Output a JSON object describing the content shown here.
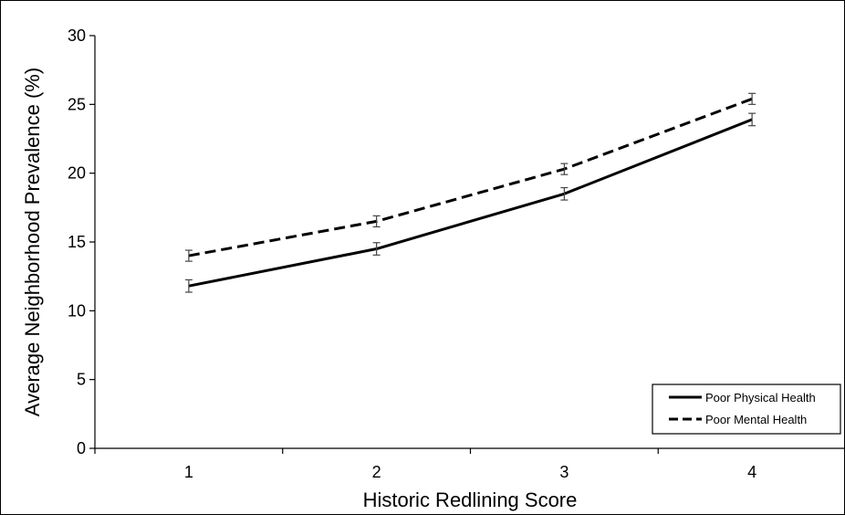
{
  "chart_data": {
    "type": "line",
    "xlabel": "Historic Redlining Score",
    "ylabel": "Average Neighborhood Prevalence (%)",
    "x": [
      1,
      2,
      3,
      4
    ],
    "xlim": [
      0.5,
      4.5
    ],
    "ylim": [
      0,
      30
    ],
    "y_ticks": [
      0,
      5,
      10,
      15,
      20,
      25,
      30
    ],
    "x_ticks": [
      1,
      2,
      3,
      4
    ],
    "grid": false,
    "legend_position": "bottom-right",
    "series": [
      {
        "name": "Poor Physical Health",
        "style": "solid",
        "color": "#000000",
        "values": [
          11.8,
          14.5,
          18.5,
          23.9
        ],
        "error": [
          0.45,
          0.45,
          0.45,
          0.45
        ]
      },
      {
        "name": "Poor Mental Health",
        "style": "dashed",
        "color": "#000000",
        "values": [
          14.0,
          16.5,
          20.3,
          25.4
        ],
        "error": [
          0.4,
          0.4,
          0.4,
          0.4
        ]
      }
    ]
  }
}
